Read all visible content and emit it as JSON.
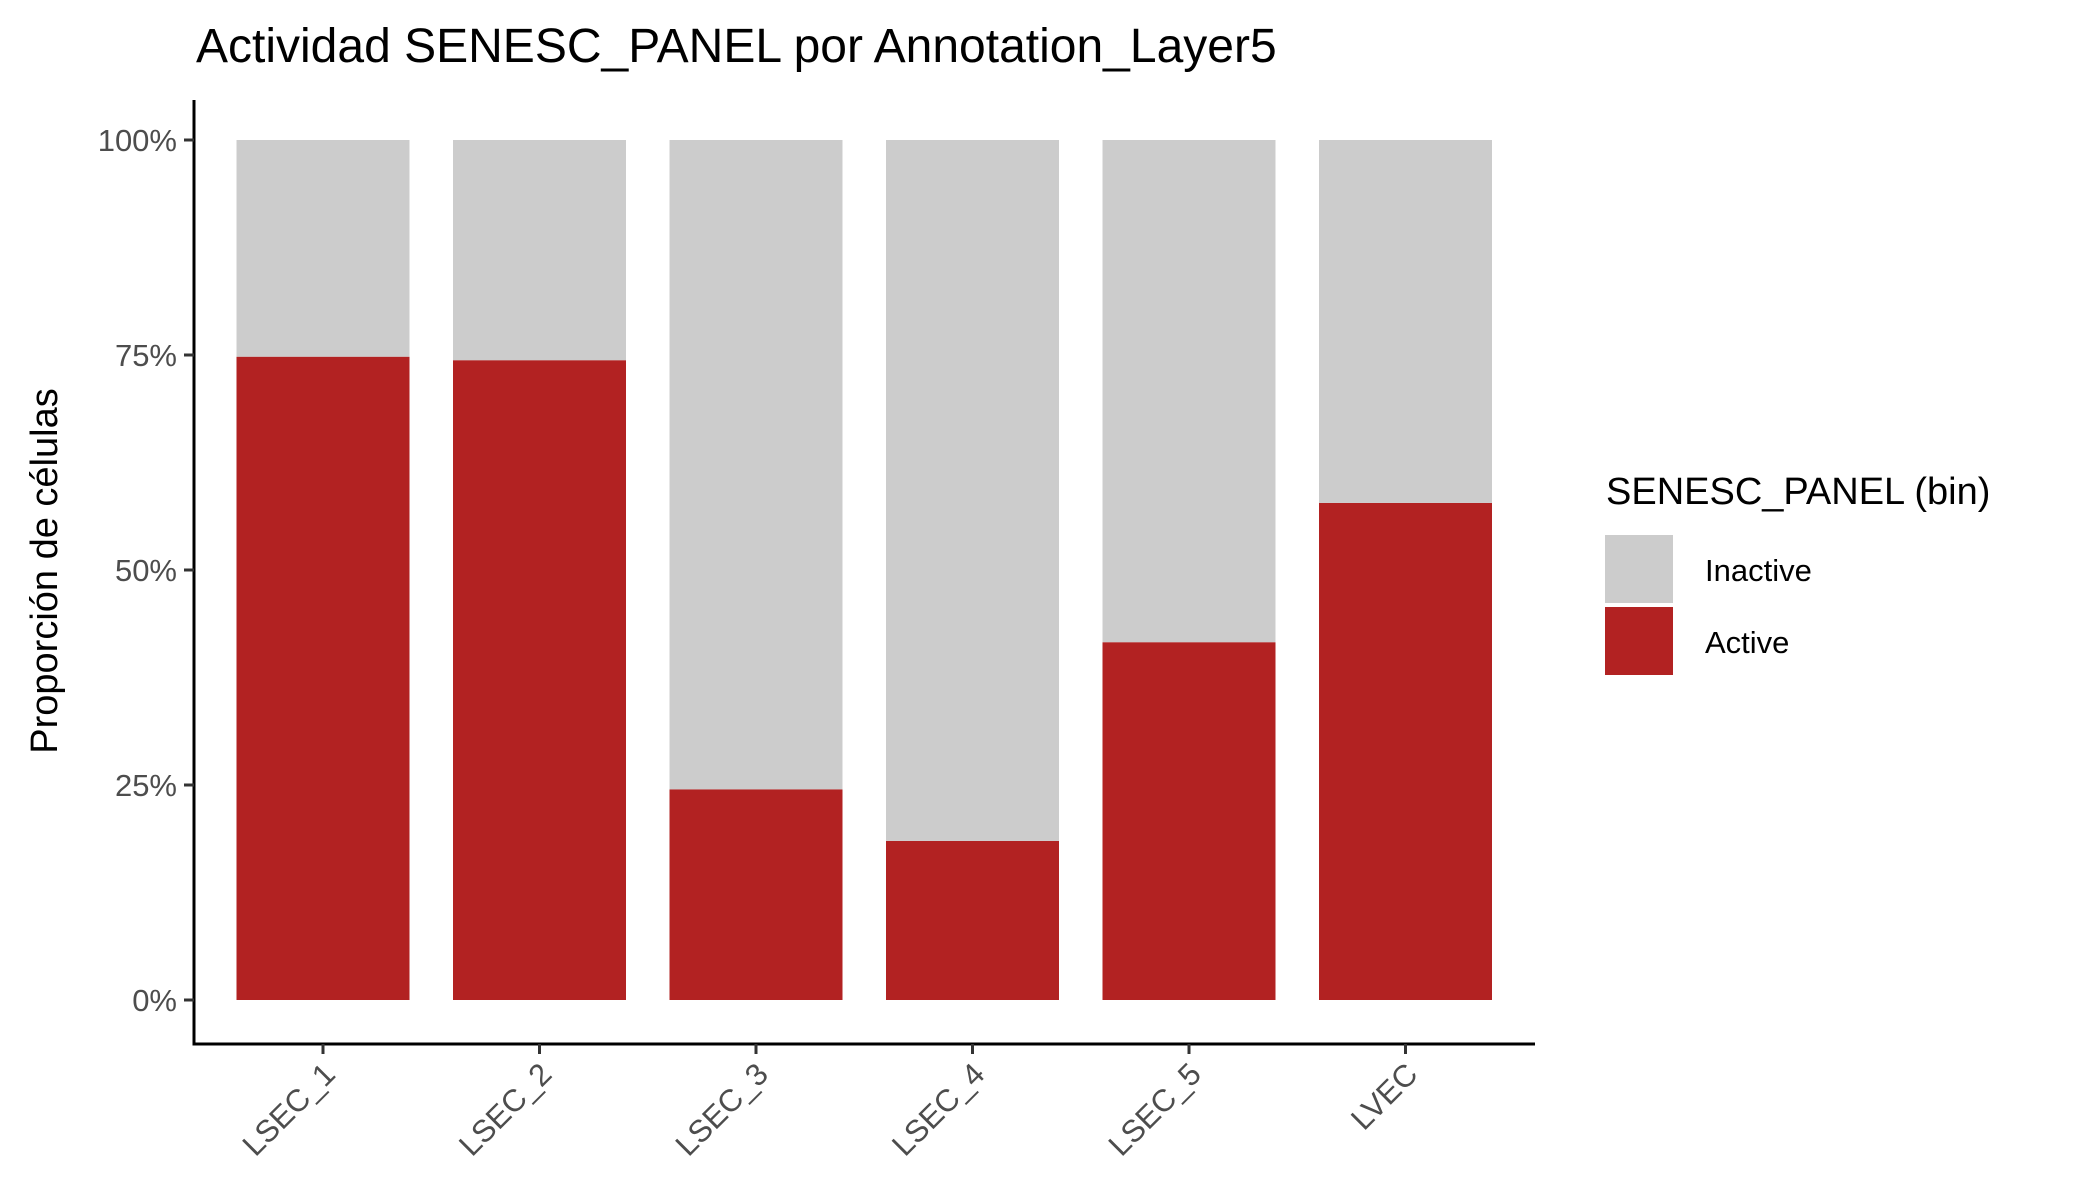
{
  "chart_data": {
    "type": "bar",
    "stacked": true,
    "title": "Actividad SENESC_PANEL por Annotation_Layer5",
    "xlabel": "",
    "ylabel": "Proporción de células",
    "categories": [
      "LSEC_1",
      "LSEC_2",
      "LSEC_3",
      "LSEC_4",
      "LSEC_5",
      "LVEC"
    ],
    "series": [
      {
        "name": "Active",
        "color": "#B22222",
        "values": [
          0.748,
          0.744,
          0.245,
          0.185,
          0.416,
          0.578
        ]
      },
      {
        "name": "Inactive",
        "color": "#CCCCCC",
        "values": [
          0.252,
          0.256,
          0.755,
          0.815,
          0.584,
          0.422
        ]
      }
    ],
    "y_ticks": [
      0,
      0.25,
      0.5,
      0.75,
      1.0
    ],
    "y_tick_labels": [
      "0%",
      "25%",
      "50%",
      "75%",
      "100%"
    ],
    "ylim": [
      0,
      1
    ],
    "legend": {
      "title": "SENESC_PANEL (bin)",
      "position": "right",
      "entries": [
        {
          "label": "Inactive",
          "color": "#CCCCCC"
        },
        {
          "label": "Active",
          "color": "#B22222"
        }
      ]
    },
    "grid": false
  }
}
